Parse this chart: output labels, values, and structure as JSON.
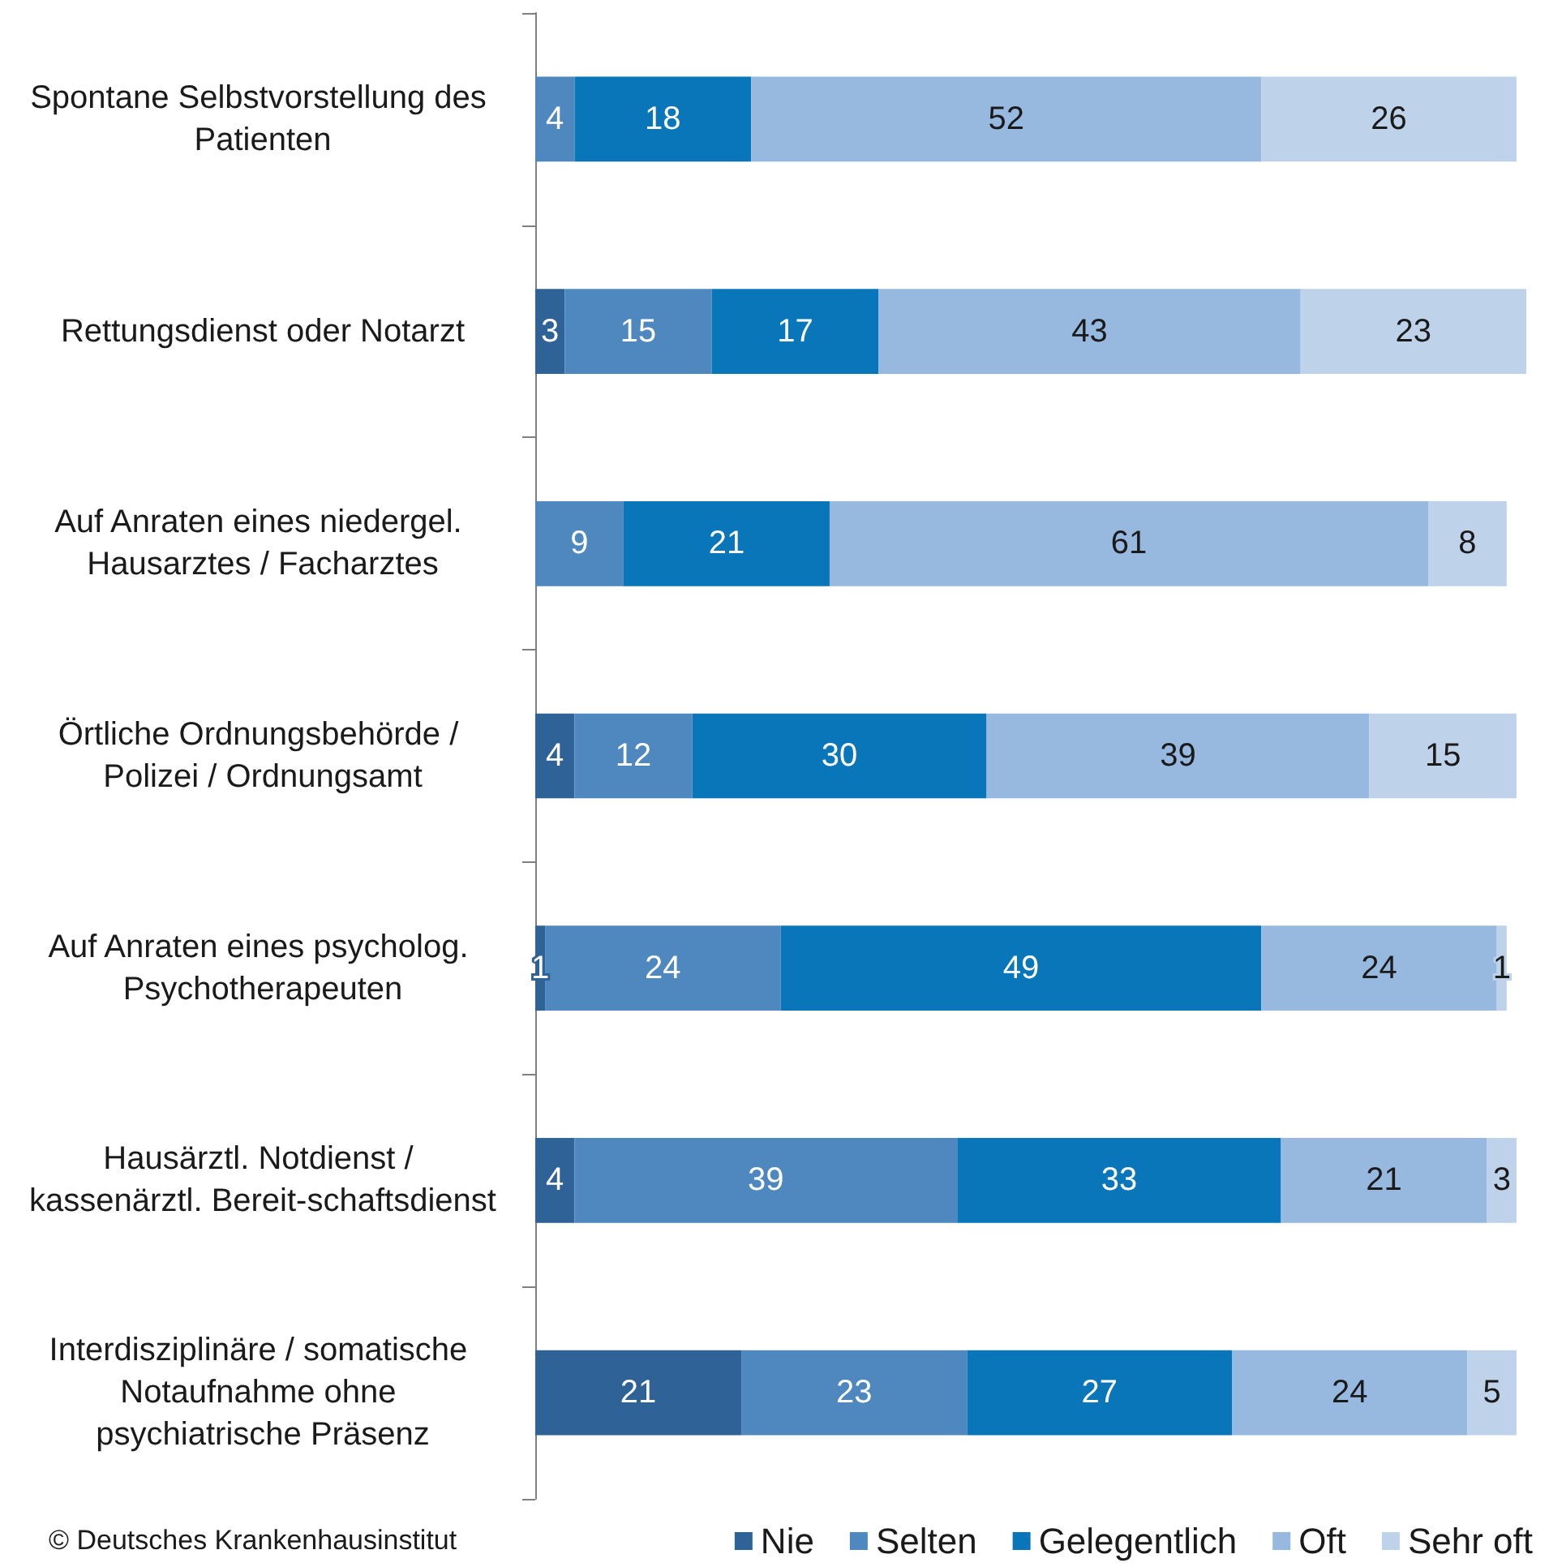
{
  "chart_data": {
    "type": "bar",
    "orientation": "horizontal",
    "stacked": true,
    "data_labels": true,
    "legend": "bottom right",
    "tick_labels": "y",
    "xlim": [
      0,
      101
    ],
    "categories": [
      "Spontane Selbstvorstellung des Patienten",
      "Rettungsdienst oder Notarzt",
      "Auf Anraten eines niedergel. Hausarztes / Facharztes",
      "Örtliche Ordnungsbehörde / Polizei / Ordnungsamt",
      "Auf Anraten eines psycholog. Psychotherapeuten",
      "Hausärztl. Notdienst / kassenärztl. Bereit-schaftsdienst",
      "Interdisziplinäre / somatische Notaufnahme ohne psychiatrische Präsenz"
    ],
    "series": [
      {
        "name": "Nie",
        "color": "#2f6296",
        "values": [
          null,
          3,
          null,
          4,
          1,
          4,
          21
        ]
      },
      {
        "name": "Selten",
        "color": "#4e88bf",
        "values": [
          4,
          15,
          9,
          12,
          24,
          39,
          23
        ]
      },
      {
        "name": "Gelegentlich",
        "color": "#0a76ba",
        "values": [
          18,
          17,
          21,
          30,
          49,
          33,
          27
        ]
      },
      {
        "name": "Oft",
        "color": "#97b9df",
        "values": [
          52,
          43,
          61,
          39,
          24,
          21,
          24
        ]
      },
      {
        "name": "Sehr oft",
        "color": "#bed2ea",
        "values": [
          26,
          23,
          8,
          15,
          1,
          3,
          5
        ]
      }
    ],
    "annotations": [
      "© Deutsches Krankenhausinstitut"
    ]
  }
}
